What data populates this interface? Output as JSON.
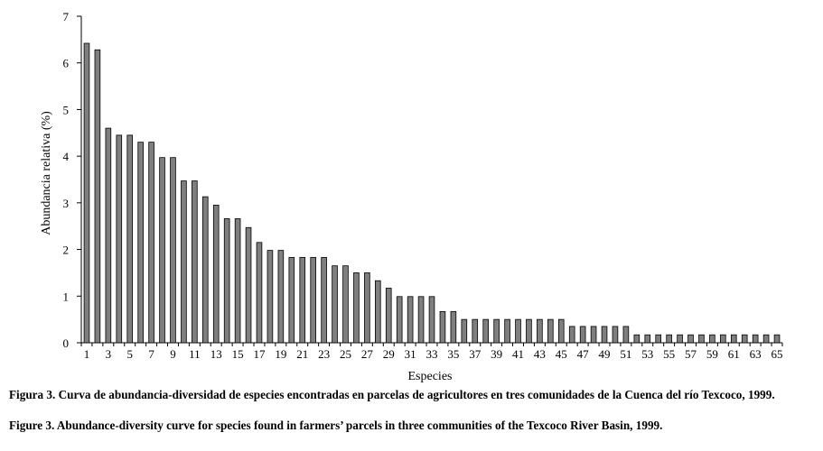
{
  "chart_data": {
    "type": "bar",
    "ylabel": "Abundancia relativa (%)",
    "xlabel": "Especies",
    "ylim": [
      0,
      7
    ],
    "yticks": [
      0,
      1,
      2,
      3,
      4,
      5,
      6,
      7
    ],
    "categories": [
      1,
      2,
      3,
      4,
      5,
      6,
      7,
      8,
      9,
      10,
      11,
      12,
      13,
      14,
      15,
      16,
      17,
      18,
      19,
      20,
      21,
      22,
      23,
      24,
      25,
      26,
      27,
      28,
      29,
      30,
      31,
      32,
      33,
      34,
      35,
      36,
      37,
      38,
      39,
      40,
      41,
      42,
      43,
      44,
      45,
      46,
      47,
      48,
      49,
      50,
      51,
      52,
      53,
      54,
      55,
      56,
      57,
      58,
      59,
      60,
      61,
      62,
      63,
      64,
      65
    ],
    "xtick_labels": [
      "1",
      "3",
      "5",
      "7",
      "9",
      "11",
      "13",
      "15",
      "17",
      "19",
      "21",
      "23",
      "25",
      "27",
      "29",
      "31",
      "33",
      "35",
      "37",
      "39",
      "41",
      "43",
      "45",
      "47",
      "49",
      "51",
      "53",
      "55",
      "57",
      "59",
      "61",
      "63",
      "65"
    ],
    "values": [
      6.42,
      6.28,
      4.6,
      4.45,
      4.45,
      4.3,
      4.3,
      3.97,
      3.97,
      3.47,
      3.47,
      3.13,
      2.95,
      2.66,
      2.66,
      2.47,
      2.15,
      1.98,
      1.98,
      1.83,
      1.83,
      1.83,
      1.83,
      1.65,
      1.65,
      1.5,
      1.5,
      1.33,
      1.17,
      0.99,
      0.99,
      0.99,
      0.99,
      0.67,
      0.67,
      0.5,
      0.5,
      0.5,
      0.5,
      0.5,
      0.5,
      0.5,
      0.5,
      0.5,
      0.5,
      0.35,
      0.35,
      0.35,
      0.35,
      0.35,
      0.35,
      0.17,
      0.17,
      0.17,
      0.17,
      0.17,
      0.17,
      0.17,
      0.17,
      0.17,
      0.17,
      0.17,
      0.17,
      0.17,
      0.17
    ],
    "bar_color": "#7f7f7f",
    "bar_edge_color": "#000000"
  },
  "captions": {
    "spanish_label": "Figura 3.",
    "spanish_text": "Curva de abundancia-diversidad de especies encontradas en parcelas de agricultores en tres comunidades de la Cuenca del río Texcoco, 1999.",
    "english_label": "Figure 3.",
    "english_text": "Abundance-diversity curve for species found in farmers’ parcels in three communities of the Texcoco River Basin, 1999."
  }
}
